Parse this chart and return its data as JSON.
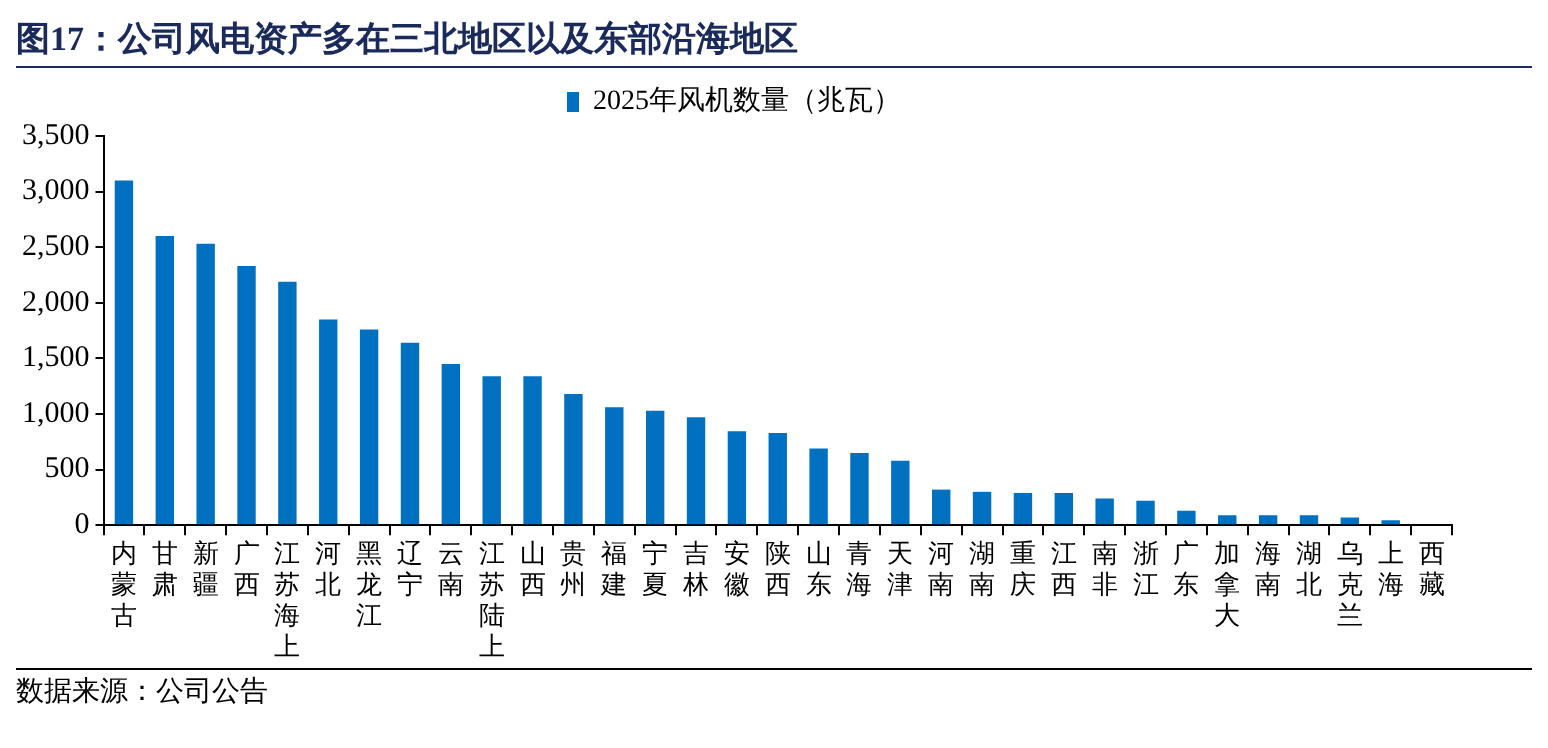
{
  "chart_data": {
    "type": "bar",
    "title": "图17：公司风电资产多在三北地区以及东部沿海地区",
    "categories": [
      "内蒙古",
      "甘肃",
      "新疆",
      "广西",
      "江苏海上",
      "河北",
      "黑龙江",
      "辽宁",
      "云南",
      "江苏陆上",
      "山西",
      "贵州",
      "福建",
      "宁夏",
      "吉林",
      "安徽",
      "陕西",
      "山东",
      "青海",
      "天津",
      "河南",
      "湖南",
      "重庆",
      "江西",
      "南非",
      "浙江",
      "广东",
      "加拿大",
      "海南",
      "湖北",
      "乌克兰",
      "上海",
      "西藏"
    ],
    "series": [
      {
        "name": "2025年风机数量（兆瓦）",
        "color": "#0070c0",
        "values": [
          3100,
          2600,
          2530,
          2330,
          2190,
          1850,
          1760,
          1640,
          1450,
          1340,
          1340,
          1180,
          1060,
          1030,
          970,
          845,
          830,
          690,
          650,
          580,
          320,
          300,
          290,
          290,
          240,
          220,
          130,
          90,
          90,
          90,
          70,
          45,
          0
        ]
      }
    ],
    "ylim": [
      0,
      3500
    ],
    "yticks": [
      {
        "value": 0,
        "label": "0"
      },
      {
        "value": 500,
        "label": "500"
      },
      {
        "value": 1000,
        "label": "1,000"
      },
      {
        "value": 1500,
        "label": "1,500"
      },
      {
        "value": 2000,
        "label": "2,000"
      },
      {
        "value": 2500,
        "label": "2,500"
      },
      {
        "value": 3000,
        "label": "3,000"
      },
      {
        "value": 3500,
        "label": "3,500"
      }
    ],
    "grid": false,
    "legend": "top",
    "annotations": [
      "数据来源：公司公告"
    ]
  }
}
